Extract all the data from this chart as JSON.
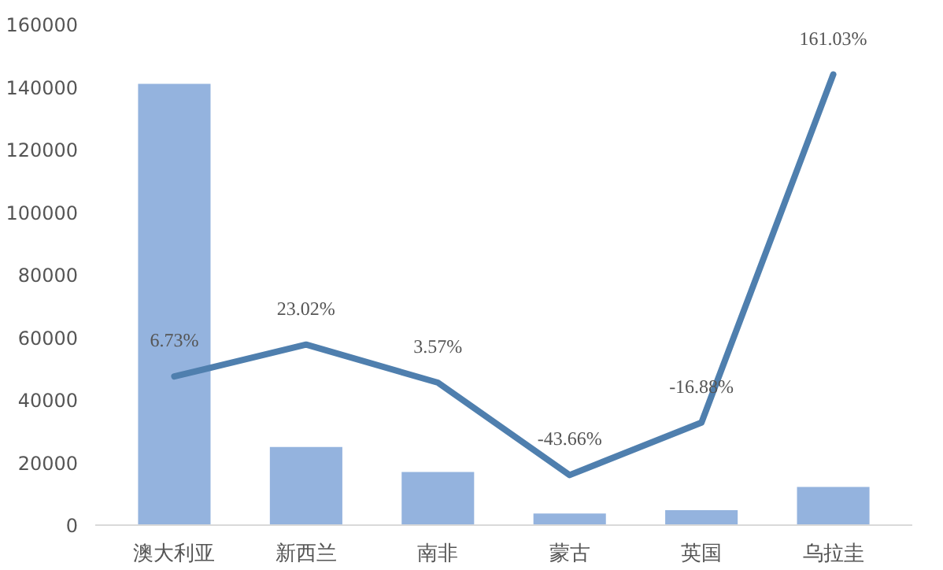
{
  "chart_data": {
    "type": "bar",
    "categories": [
      "澳大利亚",
      "新西兰",
      "南非",
      "蒙古",
      "英国",
      "乌拉圭"
    ],
    "ylim": [
      0,
      160000
    ],
    "yticks": [
      0,
      20000,
      40000,
      60000,
      80000,
      100000,
      120000,
      140000,
      160000
    ],
    "grid": false,
    "series": [
      {
        "color": "#94b3de",
        "values": [
          141000,
          25000,
          17000,
          3700,
          4800,
          12200
        ]
      },
      {
        "type": "line",
        "axis": "y2",
        "color": "#4f7fae",
        "line_style": "solid",
        "values": [
          6.73,
          23.02,
          3.57,
          -43.66,
          -16.88,
          161.03
        ],
        "value_labels": [
          "6.73%",
          "23.02%",
          "3.57%",
          "-43.66%",
          "-16.88%",
          "161.03%"
        ]
      }
    ]
  }
}
